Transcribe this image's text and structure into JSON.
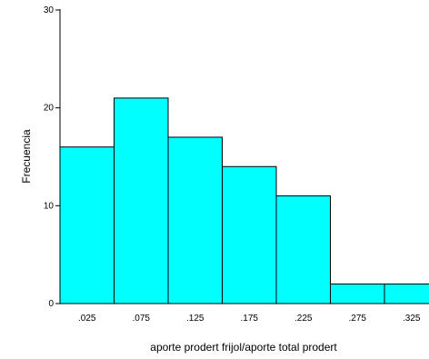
{
  "chart_data": {
    "type": "bar",
    "title": "",
    "xlabel": "aporte prodert frijol/aporte total prodert",
    "ylabel": "Frecuencia",
    "categories": [
      ".025",
      ".075",
      ".125",
      ".175",
      ".225",
      ".275",
      ".325"
    ],
    "values": [
      16,
      21,
      17,
      14,
      11,
      2,
      2
    ],
    "ylim": [
      0,
      30
    ],
    "yticks": [
      0,
      10,
      20,
      30
    ],
    "grid": false,
    "legend": "none",
    "bar_color": "#00ffff",
    "bar_edge_color": "#000000"
  }
}
